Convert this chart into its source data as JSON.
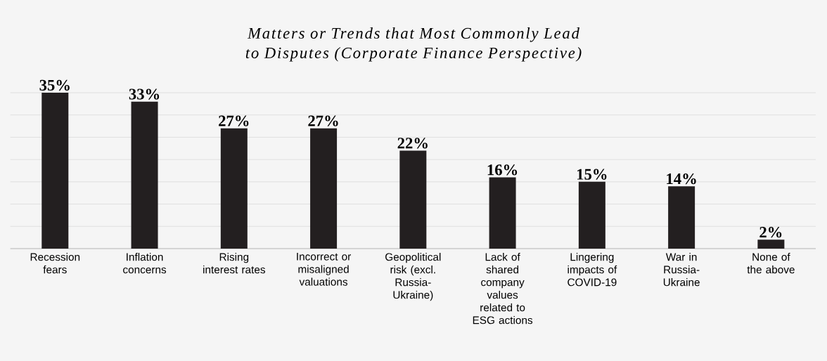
{
  "chart_data": {
    "type": "bar",
    "title": "Matters or Trends that Most Commonly Lead to Disputes (Corporate Finance Perspective)",
    "categories": [
      "Recession fears",
      "Inflation concerns",
      "Rising interest rates",
      "Incorrect or misaligned valuations",
      "Geopolitical risk (excl. Russia-Ukraine)",
      "Lack of shared company values related to ESG actions",
      "Lingering impacts of COVID-19",
      "War in Russia-Ukraine",
      "None of the above"
    ],
    "values": [
      35,
      33,
      27,
      27,
      22,
      16,
      15,
      14,
      2
    ],
    "value_labels": [
      "35%",
      "33%",
      "27%",
      "27%",
      "22%",
      "16%",
      "15%",
      "14%",
      "2%"
    ],
    "color": "#231f20",
    "ylim": [
      0,
      35
    ],
    "yticks": [
      {
        "value": 0,
        "label": null
      },
      {
        "value": 5,
        "label": null
      },
      {
        "value": 10,
        "label": null
      },
      {
        "value": 15,
        "label": null
      },
      {
        "value": 20,
        "label": null
      },
      {
        "value": 25,
        "label": null
      },
      {
        "value": 30,
        "label": null
      },
      {
        "value": 35,
        "label": null
      }
    ],
    "grid": "y",
    "tick_labels": "x"
  }
}
